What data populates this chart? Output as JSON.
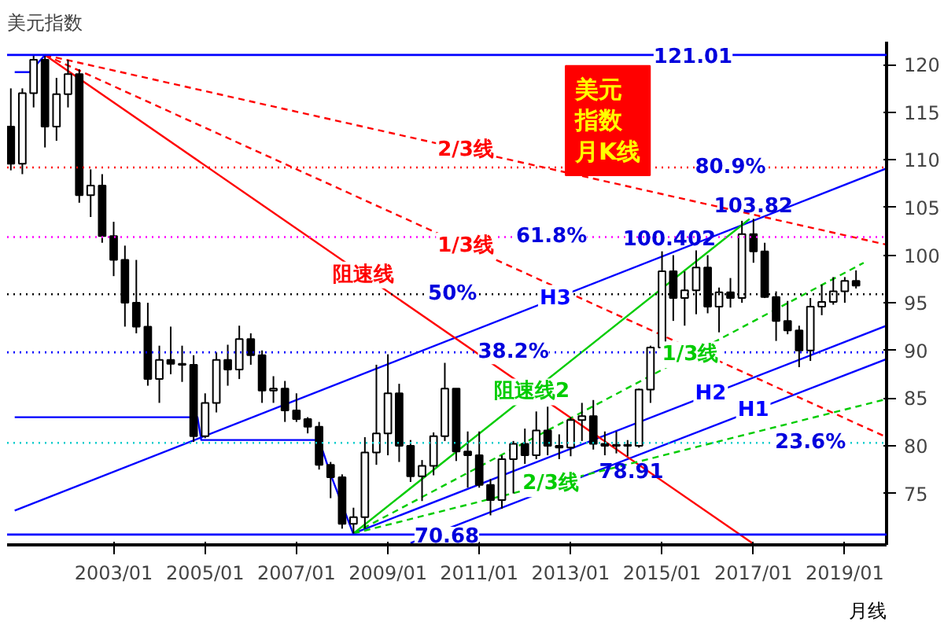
{
  "chart_data": {
    "type": "candlestick",
    "title": "美元指数",
    "color": "#000000",
    "x": [
      "2000-10",
      "2001-01",
      "2001-04",
      "2001-07",
      "2001-10",
      "2002-01",
      "2002-04",
      "2002-07",
      "2002-10",
      "2003-01",
      "2003-04",
      "2003-07",
      "2003-10",
      "2004-01",
      "2004-04",
      "2004-07",
      "2004-10",
      "2005-01",
      "2005-04",
      "2005-07",
      "2005-10",
      "2006-01",
      "2006-04",
      "2006-07",
      "2006-10",
      "2007-01",
      "2007-04",
      "2007-07",
      "2007-10",
      "2008-01",
      "2008-04",
      "2008-07",
      "2008-10",
      "2009-01",
      "2009-04",
      "2009-07",
      "2009-10",
      "2010-01",
      "2010-04",
      "2010-07",
      "2010-10",
      "2011-01",
      "2011-04",
      "2011-07",
      "2011-10",
      "2012-01",
      "2012-04",
      "2012-07",
      "2012-10",
      "2013-01",
      "2013-04",
      "2013-07",
      "2013-10",
      "2014-01",
      "2014-04",
      "2014-07",
      "2014-10",
      "2015-01",
      "2015-04",
      "2015-07",
      "2015-10",
      "2016-01",
      "2016-04",
      "2016-07",
      "2016-10",
      "2017-01",
      "2017-04",
      "2017-07",
      "2017-10",
      "2018-01",
      "2018-04",
      "2018-07",
      "2018-10",
      "2019-01",
      "2019-04"
    ],
    "ohlc": [
      [
        113.5,
        117.5,
        108.9,
        109.6
      ],
      [
        109.6,
        117.5,
        108.5,
        117.0
      ],
      [
        117.0,
        121.0,
        115.5,
        120.5
      ],
      [
        120.5,
        121.01,
        111.3,
        113.5
      ],
      [
        113.5,
        118.6,
        112.0,
        116.9
      ],
      [
        116.9,
        120.5,
        115.5,
        119.0
      ],
      [
        119.0,
        119.5,
        105.5,
        106.3
      ],
      [
        106.3,
        109.0,
        104.0,
        107.3
      ],
      [
        107.3,
        108.5,
        101.3,
        102.0
      ],
      [
        102.0,
        103.5,
        97.8,
        99.5
      ],
      [
        99.5,
        101.0,
        92.5,
        95.0
      ],
      [
        95.0,
        99.5,
        91.8,
        92.5
      ],
      [
        92.5,
        95.0,
        86.3,
        87.0
      ],
      [
        87.0,
        90.5,
        84.5,
        89.0
      ],
      [
        89.0,
        92.5,
        87.5,
        88.6
      ],
      [
        88.6,
        90.5,
        86.7,
        88.5
      ],
      [
        88.5,
        89.5,
        80.4,
        81.0
      ],
      [
        81.0,
        85.5,
        80.8,
        84.5
      ],
      [
        84.5,
        89.8,
        83.5,
        89.0
      ],
      [
        89.0,
        90.6,
        86.3,
        88.0
      ],
      [
        88.0,
        92.6,
        87.0,
        91.2
      ],
      [
        91.2,
        91.8,
        88.5,
        89.5
      ],
      [
        89.5,
        90.0,
        84.5,
        85.8
      ],
      [
        85.8,
        87.3,
        84.5,
        86.0
      ],
      [
        86.0,
        86.8,
        82.5,
        83.7
      ],
      [
        83.7,
        85.5,
        82.5,
        82.8
      ],
      [
        82.8,
        83.0,
        81.3,
        82.0
      ],
      [
        82.0,
        82.5,
        77.5,
        78.0
      ],
      [
        78.0,
        78.3,
        74.5,
        76.7
      ],
      [
        76.7,
        77.0,
        71.3,
        71.8
      ],
      [
        71.8,
        73.5,
        70.68,
        72.5
      ],
      [
        72.5,
        80.9,
        71.3,
        79.3
      ],
      [
        79.3,
        88.5,
        78.0,
        81.3
      ],
      [
        81.3,
        89.6,
        79.0,
        85.5
      ],
      [
        85.5,
        86.5,
        78.3,
        80.0
      ],
      [
        80.0,
        80.6,
        76.2,
        76.8
      ],
      [
        76.8,
        78.5,
        74.2,
        77.9
      ],
      [
        77.9,
        81.4,
        76.9,
        81.0
      ],
      [
        81.0,
        88.7,
        80.5,
        86.0
      ],
      [
        86.0,
        86.0,
        78.4,
        79.4
      ],
      [
        79.4,
        81.5,
        75.6,
        79.0
      ],
      [
        79.0,
        81.5,
        75.6,
        75.9
      ],
      [
        75.9,
        76.5,
        72.7,
        74.3
      ],
      [
        74.3,
        79.0,
        73.4,
        78.6
      ],
      [
        78.6,
        80.5,
        75.0,
        80.2
      ],
      [
        80.2,
        81.8,
        78.1,
        79.0
      ],
      [
        79.0,
        83.6,
        78.6,
        81.6
      ],
      [
        81.6,
        84.1,
        79.0,
        80.0
      ],
      [
        80.0,
        81.2,
        78.6,
        79.8
      ],
      [
        79.8,
        83.0,
        78.9,
        82.7
      ],
      [
        82.7,
        84.5,
        80.5,
        83.1
      ],
      [
        83.1,
        84.8,
        79.6,
        80.2
      ],
      [
        80.2,
        81.5,
        79.0,
        80.0
      ],
      [
        80.0,
        81.5,
        79.2,
        80.1
      ],
      [
        80.1,
        80.6,
        78.91,
        80.0
      ],
      [
        80.0,
        86.0,
        79.8,
        85.9
      ],
      [
        85.9,
        90.5,
        84.5,
        90.3
      ],
      [
        90.3,
        100.402,
        90.0,
        98.3
      ],
      [
        98.3,
        100.0,
        93.1,
        95.5
      ],
      [
        95.5,
        98.3,
        92.6,
        96.3
      ],
      [
        96.3,
        100.5,
        93.8,
        98.7
      ],
      [
        98.7,
        100.0,
        93.9,
        94.6
      ],
      [
        94.6,
        96.6,
        91.9,
        96.1
      ],
      [
        96.1,
        97.6,
        94.5,
        95.5
      ],
      [
        95.5,
        103.6,
        95.0,
        102.2
      ],
      [
        102.2,
        103.82,
        99.2,
        100.4
      ],
      [
        100.4,
        101.3,
        95.5,
        95.6
      ],
      [
        95.6,
        96.2,
        91.0,
        93.1
      ],
      [
        93.1,
        95.2,
        91.7,
        92.1
      ],
      [
        92.1,
        92.6,
        88.25,
        90.0
      ],
      [
        90.0,
        95.5,
        88.9,
        94.6
      ],
      [
        94.6,
        96.9,
        93.7,
        95.1
      ],
      [
        95.1,
        97.7,
        94.8,
        96.2
      ],
      [
        96.2,
        97.7,
        95.0,
        97.3
      ],
      [
        97.3,
        98.4,
        96.5,
        96.8
      ]
    ],
    "series": [
      {
        "type": "line",
        "name": "H3",
        "color": "#0000ff",
        "line_style": "solid",
        "x": [
          "2000-11",
          "2019-12"
        ],
        "values": [
          73.2,
          109.1
        ]
      },
      {
        "type": "line",
        "name": "H2",
        "color": "#0000ff",
        "line_style": "solid",
        "x": [
          "2008-04",
          "2019-12"
        ],
        "values": [
          70.8,
          92.6
        ]
      },
      {
        "type": "line",
        "name": "H1",
        "color": "#0000ff",
        "line_style": "solid",
        "x": [
          "2009-07",
          "2019-12"
        ],
        "values": [
          69.8,
          89.1
        ]
      },
      {
        "type": "line",
        "color": "#0000ff",
        "line_style": "solid",
        "x": [
          "2000-11",
          "2001-03",
          "2001-07"
        ],
        "values": [
          119.2,
          119.2,
          121.0
        ]
      },
      {
        "type": "line",
        "color": "#0000ff",
        "line_style": "solid",
        "x": [
          "2000-11",
          "2004-11",
          "2004-12",
          "2007-07",
          "2007-10",
          "2008-04"
        ],
        "values": [
          83.0,
          83.0,
          80.6,
          80.6,
          77.0,
          70.7
        ]
      },
      {
        "type": "line",
        "name": "阻速线",
        "color": "#ff0000",
        "line_style": "solid",
        "x": [
          "2001-07",
          "2017-01"
        ],
        "values": [
          121.0,
          69.7
        ]
      },
      {
        "type": "line",
        "name": "2/3线",
        "color": "#ff0000",
        "line_style": "dashed",
        "x": [
          "2001-07",
          "2019-12"
        ],
        "values": [
          121.0,
          101.1
        ]
      },
      {
        "type": "line",
        "name": "1/3线",
        "color": "#ff0000",
        "line_style": "dashed",
        "x": [
          "2001-07",
          "2019-12"
        ],
        "values": [
          121.0,
          80.9
        ]
      },
      {
        "type": "line",
        "name": "阻速线2",
        "color": "#00cc00",
        "line_style": "solid",
        "x": [
          "2008-04",
          "2016-12"
        ],
        "values": [
          70.8,
          103.8
        ]
      },
      {
        "type": "line",
        "name": "1/3线",
        "color": "#00cc00",
        "line_style": "dashed",
        "x": [
          "2008-04",
          "2019-06"
        ],
        "values": [
          70.8,
          99.2
        ]
      },
      {
        "type": "line",
        "name": "2/3线",
        "color": "#00cc00",
        "line_style": "dashed",
        "x": [
          "2008-04",
          "2019-12"
        ],
        "values": [
          70.8,
          84.9
        ]
      }
    ],
    "ref_lines": [
      {
        "axis": "y",
        "value": 121.01,
        "label": "121.01",
        "color": "#0000ff",
        "line_style": "solid"
      },
      {
        "axis": "y",
        "value": 109.2,
        "color": "#ff0000",
        "line_style": "dotted"
      },
      {
        "axis": "y",
        "value": 101.9,
        "color": "#ff00ff",
        "line_style": "dotted"
      },
      {
        "axis": "y",
        "value": 95.9,
        "color": "#000000",
        "line_style": "dotted"
      },
      {
        "axis": "y",
        "value": 89.8,
        "color": "#0000ff",
        "line_style": "dotted"
      },
      {
        "axis": "y",
        "value": 80.3,
        "color": "#00cccc",
        "line_style": "dotted"
      },
      {
        "axis": "y",
        "value": 70.68,
        "label": "70.68",
        "color": "#0000ff",
        "line_style": "solid"
      }
    ],
    "annotations": [
      {
        "text": "103.82",
        "x": "2017-01",
        "y": 103.82
      },
      {
        "text": "100.402",
        "x": "2015-03",
        "y": 100.402
      },
      {
        "text": "78.91",
        "x": "2014-05",
        "y": 78.91
      },
      {
        "text": "80.9%",
        "x": "2016-07",
        "y": 109.2
      },
      {
        "text": "61.8%",
        "x": "2012-08",
        "y": 101.9
      },
      {
        "text": "50%",
        "x": "2010-06",
        "y": 95.9
      },
      {
        "text": "38.2%",
        "x": "2011-10",
        "y": 89.8
      },
      {
        "text": "23.6%",
        "x": "2018-04",
        "y": 80.3
      },
      "美元指数月K线",
      "月线"
    ],
    "xlim": [
      "2000-09",
      "2019-12"
    ],
    "ylim": [
      69.6,
      122.4
    ],
    "xticks": [
      {
        "value": "2003-01",
        "label": "2003/01"
      },
      {
        "value": "2005-01",
        "label": "2005/01"
      },
      {
        "value": "2007-01",
        "label": "2007/01"
      },
      {
        "value": "2009-01",
        "label": "2009/01"
      },
      {
        "value": "2011-01",
        "label": "2011/01"
      },
      {
        "value": "2013-01",
        "label": "2013/01"
      },
      {
        "value": "2015-01",
        "label": "2015/01"
      },
      {
        "value": "2017-01",
        "label": "2017/01"
      },
      {
        "value": "2019-01",
        "label": "2019/01"
      }
    ],
    "yticks": [
      75,
      80,
      85,
      90,
      95,
      100,
      105,
      110,
      115,
      120
    ],
    "grid": false
  }
}
